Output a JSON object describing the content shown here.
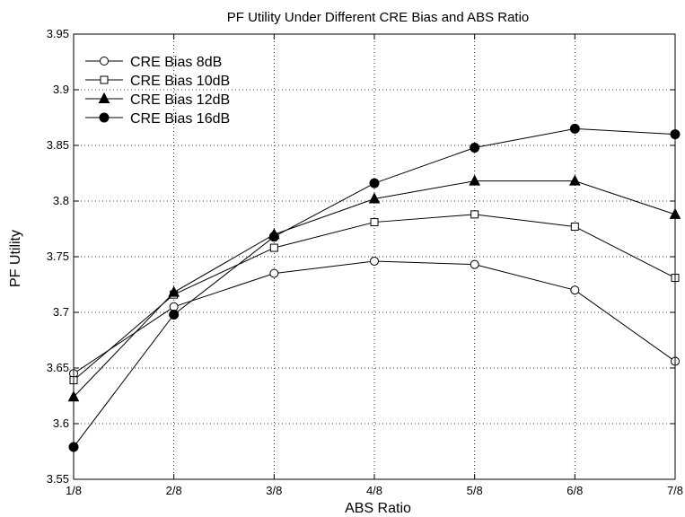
{
  "chart_data": {
    "type": "line",
    "title": "PF Utility Under Different CRE Bias and ABS Ratio",
    "xlabel": "ABS Ratio",
    "ylabel": "PF Utility",
    "categories": [
      "1/8",
      "2/8",
      "3/8",
      "4/8",
      "5/8",
      "6/8",
      "7/8"
    ],
    "ylim": [
      3.55,
      3.95
    ],
    "yticks": [
      "3.55",
      "3.6",
      "3.65",
      "3.7",
      "3.75",
      "3.8",
      "3.85",
      "3.9",
      "3.95"
    ],
    "grid": true,
    "legend_position": "top-left",
    "series": [
      {
        "name": "CRE Bias 8dB",
        "marker": "circle-open",
        "values": [
          3.645,
          3.705,
          3.735,
          3.746,
          3.743,
          3.72,
          3.656
        ]
      },
      {
        "name": "CRE Bias 10dB",
        "marker": "square-open",
        "values": [
          3.639,
          3.716,
          3.758,
          3.781,
          3.788,
          3.777,
          3.731
        ]
      },
      {
        "name": "CRE Bias 12dB",
        "marker": "triangle-filled",
        "values": [
          3.624,
          3.718,
          3.77,
          3.802,
          3.818,
          3.818,
          3.788
        ]
      },
      {
        "name": "CRE Bias 16dB",
        "marker": "circle-filled",
        "values": [
          3.579,
          3.698,
          3.768,
          3.816,
          3.848,
          3.865,
          3.86
        ]
      }
    ]
  }
}
